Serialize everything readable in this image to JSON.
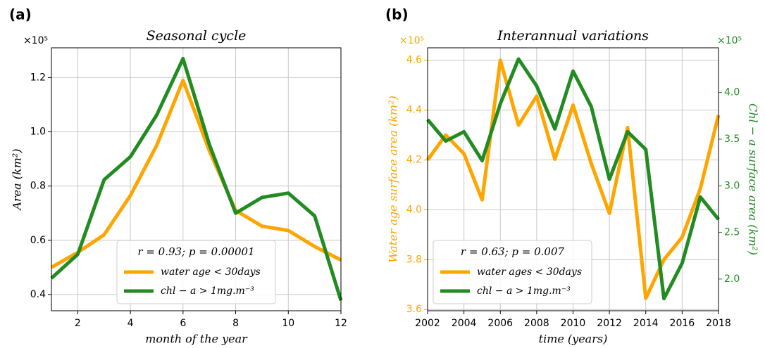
{
  "chart_data": [
    {
      "type": "line",
      "panel_label": "(a)",
      "title": "Seasonal cycle",
      "xlabel": "month of the year",
      "ylabel": "Area (km²)",
      "offset_label": "×10⁵",
      "x": [
        1,
        2,
        3,
        4,
        5,
        6,
        7,
        8,
        9,
        10,
        11,
        12
      ],
      "xlim": [
        1,
        12
      ],
      "xticks": [
        2,
        4,
        6,
        8,
        10,
        12
      ],
      "ylim": [
        0.34,
        1.31
      ],
      "yticks": [
        0.4,
        0.6,
        0.8,
        {
          "value": 1,
          "label": "1.0"
        },
        1.2
      ],
      "grid": true,
      "legend_title": "r = 0.93; p = 0.00001",
      "legend_loc": "lower center",
      "series": [
        {
          "name": "water age < 30days",
          "color": "#ffa500",
          "values": [
            0.5,
            0.555,
            0.62,
            0.765,
            0.95,
            1.19,
            0.93,
            0.71,
            0.652,
            0.636,
            0.577,
            0.527
          ]
        },
        {
          "name": "chl − a > 1mg.m⁻³",
          "color": "#228b22",
          "values": [
            0.46,
            0.548,
            0.823,
            0.908,
            1.062,
            1.27,
            0.953,
            0.7,
            0.758,
            0.774,
            0.69,
            0.378
          ]
        }
      ]
    },
    {
      "type": "line",
      "panel_label": "(b)",
      "title": "Interannual variations",
      "xlabel": "time (years)",
      "ylabel": "Water age surface area (km²)",
      "y2label": "Chl − a surface area (km²)",
      "offset_label": "×10⁵",
      "y2_offset_label": "×10⁵",
      "x": [
        2002,
        2003,
        2004,
        2005,
        2006,
        2007,
        2008,
        2009,
        2010,
        2011,
        2012,
        2013,
        2014,
        2015,
        2016,
        2017,
        2018
      ],
      "xlim": [
        2002,
        2018
      ],
      "xticks": [
        2002,
        2004,
        2006,
        2008,
        2010,
        2012,
        2014,
        2016,
        2018
      ],
      "ylim": [
        3.595,
        4.65
      ],
      "yticks": [
        3.6,
        3.8,
        {
          "value": 4,
          "label": "4.0"
        },
        4.2,
        4.4,
        4.6
      ],
      "y2lim": [
        1.66,
        4.48
      ],
      "y2ticks": [
        {
          "value": 2,
          "label": "2.0"
        },
        2.5,
        {
          "value": 3,
          "label": "3.0"
        },
        3.5,
        {
          "value": 4,
          "label": "4.0"
        }
      ],
      "ylabel_color": "#ffa500",
      "y2label_color": "#228b22",
      "grid": true,
      "legend_title": "r = 0.63; p = 0.007",
      "legend_loc": "lower left",
      "series": [
        {
          "name": "water ages < 30days",
          "color": "#ffa500",
          "values": [
            4.2,
            4.3,
            4.225,
            4.04,
            4.6,
            4.34,
            4.456,
            4.203,
            4.42,
            4.186,
            3.986,
            4.33,
            3.645,
            3.8,
            3.89,
            4.085,
            4.38
          ]
        },
        {
          "name": "chl − a > 1mg.m⁻³",
          "color": "#228b22",
          "axis": "y2",
          "values": [
            3.71,
            3.48,
            3.58,
            3.27,
            3.88,
            4.36,
            4.07,
            3.61,
            4.23,
            3.85,
            3.07,
            3.58,
            3.39,
            1.79,
            2.17,
            2.88,
            2.64
          ]
        }
      ]
    }
  ]
}
